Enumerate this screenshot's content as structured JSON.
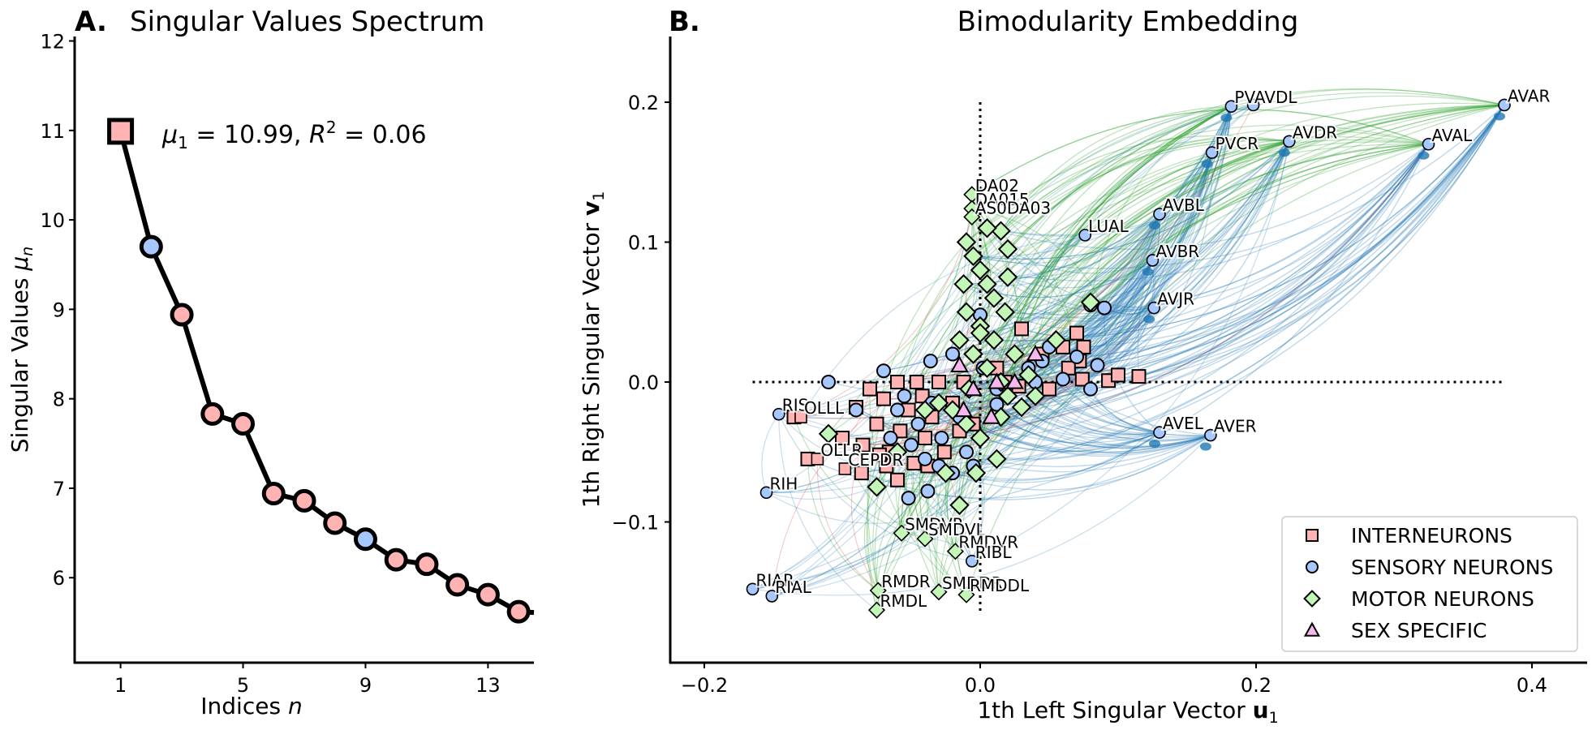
{
  "chart_data": [
    {
      "panel": "A.",
      "type": "line",
      "title": "Singular Values Spectrum",
      "xlabel": "Indices n",
      "ylabel": "Singular Values μ_n",
      "xlim": [
        -0.5,
        14.5
      ],
      "ylim": [
        5.05,
        12.05
      ],
      "xticks": [
        1,
        5,
        9,
        13
      ],
      "yticks": [
        6,
        7,
        8,
        9,
        10,
        11,
        12
      ],
      "annotation": "μ₁ = 10.99, R² = 0.06",
      "x": [
        1,
        2,
        3,
        4,
        5,
        6,
        7,
        8,
        9,
        10,
        11,
        12,
        13,
        14
      ],
      "values": [
        10.99,
        9.7,
        8.94,
        7.83,
        7.72,
        6.94,
        6.86,
        6.61,
        6.43,
        6.2,
        6.15,
        5.92,
        5.81,
        5.62
      ],
      "marker_type": [
        "interneuron",
        "sensory",
        "interneuron",
        "interneuron",
        "interneuron",
        "interneuron",
        "interneuron",
        "interneuron",
        "sensory",
        "interneuron",
        "interneuron",
        "interneuron",
        "interneuron",
        "interneuron"
      ],
      "grid": false
    },
    {
      "panel": "B.",
      "type": "scatter",
      "title": "Bimodularity Embedding",
      "xlabel": "1th Left Singular Vector u₁",
      "ylabel": "1th Right Singular Vector v₁",
      "xlim": [
        -0.22,
        0.44
      ],
      "ylim": [
        -0.2,
        0.25
      ],
      "xticks": [
        -0.2,
        0.0,
        0.2,
        0.4
      ],
      "yticks": [
        -0.1,
        0.0,
        0.1,
        0.2
      ],
      "xtick_labels": [
        "−0.2",
        "0.0",
        "0.2",
        "0.4"
      ],
      "ytick_labels": [
        "−0.1",
        "0.0",
        "0.1",
        "0.2"
      ],
      "reference_lines": {
        "horizontal_y": 0.0,
        "horizontal_x_range": [
          -0.165,
          0.38
        ],
        "vertical_x": 0.0,
        "vertical_y_range": [
          -0.165,
          0.2
        ]
      },
      "grid": false,
      "legend": {
        "placement": "lower-right",
        "entries": [
          {
            "label": "INTERNEURONS",
            "marker": "square",
            "color": "#ffb3b3"
          },
          {
            "label": "SENSORY NEURONS",
            "marker": "circle",
            "color": "#a6c8ff"
          },
          {
            "label": "MOTOR NEURONS",
            "marker": "diamond",
            "color": "#c3f7b8"
          },
          {
            "label": "SEX SPECIFIC",
            "marker": "triangle",
            "color": "#f7b8ef"
          }
        ]
      },
      "edge_colors": {
        "interneuron": "#d62728",
        "sensory": "#1f77b4",
        "motor": "#2ca02c"
      },
      "labeled_points": [
        {
          "name": "AVAR",
          "x": 0.38,
          "y": 0.198,
          "type": "sensory"
        },
        {
          "name": "AVAL",
          "x": 0.325,
          "y": 0.17,
          "type": "sensory"
        },
        {
          "name": "PVAVDL",
          "x": 0.182,
          "y": 0.197,
          "type": "sensory"
        },
        {
          "name": "",
          "x": 0.198,
          "y": 0.198,
          "type": "sensory"
        },
        {
          "name": "AVDR",
          "x": 0.224,
          "y": 0.172,
          "type": "sensory"
        },
        {
          "name": "PVCR",
          "x": 0.168,
          "y": 0.164,
          "type": "sensory"
        },
        {
          "name": "AVBL",
          "x": 0.13,
          "y": 0.12,
          "type": "sensory"
        },
        {
          "name": "AVBR",
          "x": 0.125,
          "y": 0.087,
          "type": "sensory"
        },
        {
          "name": "AVJR",
          "x": 0.126,
          "y": 0.053,
          "type": "sensory"
        },
        {
          "name": "LUAL",
          "x": 0.076,
          "y": 0.105,
          "type": "sensory"
        },
        {
          "name": "DA02",
          "x": -0.006,
          "y": 0.134,
          "type": "motor"
        },
        {
          "name": "DA015",
          "x": -0.006,
          "y": 0.124,
          "type": "motor"
        },
        {
          "name": "AS0DA03",
          "x": -0.006,
          "y": 0.118,
          "type": "motor"
        },
        {
          "name": "AVEL",
          "x": 0.13,
          "y": -0.036,
          "type": "sensory"
        },
        {
          "name": "AVER",
          "x": 0.167,
          "y": -0.038,
          "type": "sensory"
        },
        {
          "name": "RIS",
          "x": -0.146,
          "y": -0.023,
          "type": "sensory"
        },
        {
          "name": "OLLL",
          "x": -0.13,
          "y": -0.025,
          "type": "interneuron"
        },
        {
          "name": "OLLR",
          "x": -0.118,
          "y": -0.055,
          "type": "interneuron"
        },
        {
          "name": "CEPDR",
          "x": -0.098,
          "y": -0.062,
          "type": "interneuron"
        },
        {
          "name": "RIH",
          "x": -0.155,
          "y": -0.079,
          "type": "sensory"
        },
        {
          "name": "SMDVR",
          "x": -0.057,
          "y": -0.108,
          "type": "motor"
        },
        {
          "name": "SMDVL",
          "x": -0.04,
          "y": -0.112,
          "type": "motor"
        },
        {
          "name": "RMDVR",
          "x": -0.018,
          "y": -0.121,
          "type": "motor"
        },
        {
          "name": "RIBL",
          "x": -0.006,
          "y": -0.128,
          "type": "sensory"
        },
        {
          "name": "RIAR",
          "x": -0.165,
          "y": -0.148,
          "type": "sensory"
        },
        {
          "name": "RIAL",
          "x": -0.151,
          "y": -0.153,
          "type": "sensory"
        },
        {
          "name": "RMDR",
          "x": -0.074,
          "y": -0.149,
          "type": "motor"
        },
        {
          "name": "SMDDR",
          "x": -0.03,
          "y": -0.15,
          "type": "motor"
        },
        {
          "name": "RMDDL",
          "x": -0.01,
          "y": -0.152,
          "type": "motor"
        },
        {
          "name": "RMDL",
          "x": -0.075,
          "y": -0.163,
          "type": "motor"
        }
      ],
      "cluster_points": {
        "interneuron": [
          [
            -0.135,
            -0.025
          ],
          [
            -0.125,
            -0.055
          ],
          [
            -0.1,
            -0.04
          ],
          [
            -0.09,
            -0.018
          ],
          [
            -0.086,
            -0.065
          ],
          [
            -0.08,
            -0.005
          ],
          [
            -0.075,
            -0.03
          ],
          [
            -0.07,
            -0.012
          ],
          [
            -0.066,
            -0.05
          ],
          [
            -0.06,
            0.0
          ],
          [
            -0.058,
            -0.035
          ],
          [
            -0.052,
            -0.02
          ],
          [
            -0.048,
            -0.058
          ],
          [
            -0.042,
            -0.01
          ],
          [
            -0.04,
            -0.04
          ],
          [
            -0.035,
            -0.025
          ],
          [
            -0.03,
            0.0
          ],
          [
            -0.026,
            -0.05
          ],
          [
            -0.02,
            -0.015
          ],
          [
            -0.015,
            -0.035
          ],
          [
            -0.012,
            0.0
          ],
          [
            -0.005,
            -0.03
          ],
          [
            0.012,
            0.01
          ],
          [
            0.028,
            -0.003
          ],
          [
            0.03,
            0.038
          ],
          [
            0.045,
            0.02
          ],
          [
            0.05,
            -0.005
          ],
          [
            0.07,
            0.035
          ],
          [
            0.072,
            0.015
          ],
          [
            0.074,
            0.002
          ],
          [
            0.093,
            0.001
          ],
          [
            0.1,
            0.005
          ],
          [
            0.115,
            0.004
          ],
          [
            -0.085,
            -0.045
          ],
          [
            -0.068,
            -0.06
          ],
          [
            -0.06,
            -0.07
          ],
          [
            -0.046,
            0.0
          ],
          [
            -0.038,
            -0.06
          ],
          [
            0.018,
            0.0
          ],
          [
            0.06,
            0.025
          ],
          [
            0.075,
            0.025
          ],
          [
            0.064,
            0.01
          ],
          [
            -0.073,
            -0.052
          ]
        ],
        "sensory": [
          [
            -0.11,
            0.0
          ],
          [
            -0.09,
            -0.02
          ],
          [
            -0.07,
            0.008
          ],
          [
            -0.065,
            -0.04
          ],
          [
            -0.06,
            -0.02
          ],
          [
            -0.055,
            -0.01
          ],
          [
            -0.05,
            -0.045
          ],
          [
            -0.045,
            -0.03
          ],
          [
            -0.04,
            -0.055
          ],
          [
            -0.035,
            -0.015
          ],
          [
            -0.03,
            -0.06
          ],
          [
            -0.028,
            -0.04
          ],
          [
            -0.02,
            -0.065
          ],
          [
            -0.015,
            -0.025
          ],
          [
            -0.01,
            -0.05
          ],
          [
            -0.005,
            -0.06
          ],
          [
            0.002,
            0.01
          ],
          [
            0.012,
            -0.005
          ],
          [
            0.035,
            0.01
          ],
          [
            0.04,
            0.0
          ],
          [
            0.045,
            0.015
          ],
          [
            0.05,
            0.025
          ],
          [
            0.06,
            0.002
          ],
          [
            0.07,
            0.018
          ],
          [
            0.08,
            -0.005
          ],
          [
            0.085,
            0.012
          ],
          [
            0.09,
            0.053
          ],
          [
            0.08,
            0.055
          ],
          [
            0.0,
            0.048
          ],
          [
            -0.036,
            0.015
          ],
          [
            -0.052,
            -0.083
          ],
          [
            0.012,
            -0.016
          ],
          [
            -0.02,
            0.02
          ],
          [
            -0.038,
            -0.078
          ]
        ],
        "motor": [
          [
            -0.01,
            0.1
          ],
          [
            -0.005,
            0.09
          ],
          [
            0.0,
            0.08
          ],
          [
            0.005,
            0.07
          ],
          [
            0.01,
            0.06
          ],
          [
            -0.01,
            0.05
          ],
          [
            0.0,
            0.04
          ],
          [
            0.01,
            0.03
          ],
          [
            -0.005,
            0.02
          ],
          [
            0.005,
            0.01
          ],
          [
            0.015,
            0.0
          ],
          [
            0.02,
            -0.01
          ],
          [
            -0.02,
            -0.02
          ],
          [
            -0.01,
            -0.03
          ],
          [
            0.0,
            -0.04
          ],
          [
            -0.03,
            -0.015
          ],
          [
            -0.04,
            -0.02
          ],
          [
            0.03,
            -0.018
          ],
          [
            0.015,
            -0.025
          ],
          [
            0.025,
            0.02
          ],
          [
            0.055,
            0.03
          ],
          [
            0.08,
            0.057
          ],
          [
            -0.11,
            -0.037
          ],
          [
            -0.075,
            -0.075
          ],
          [
            -0.06,
            -0.05
          ],
          [
            -0.025,
            -0.065
          ],
          [
            -0.015,
            -0.088
          ],
          [
            0.012,
            -0.055
          ],
          [
            -0.003,
            -0.065
          ],
          [
            0.02,
            0.095
          ],
          [
            0.015,
            0.108
          ],
          [
            0.005,
            0.11
          ],
          [
            -0.012,
            0.07
          ],
          [
            0.02,
            0.075
          ],
          [
            0.0,
            0.035
          ],
          [
            -0.015,
            0.03
          ],
          [
            0.018,
            0.05
          ],
          [
            -0.008,
            -0.005
          ],
          [
            0.035,
            0.005
          ],
          [
            0.04,
            -0.01
          ]
        ],
        "sex_specific": [
          [
            -0.015,
            0.012
          ],
          [
            -0.005,
            -0.005
          ],
          [
            0.012,
            0.0
          ],
          [
            0.025,
            0.0
          ],
          [
            -0.012,
            -0.02
          ],
          [
            0.04,
            0.02
          ],
          [
            0.008,
            -0.025
          ]
        ]
      }
    }
  ]
}
